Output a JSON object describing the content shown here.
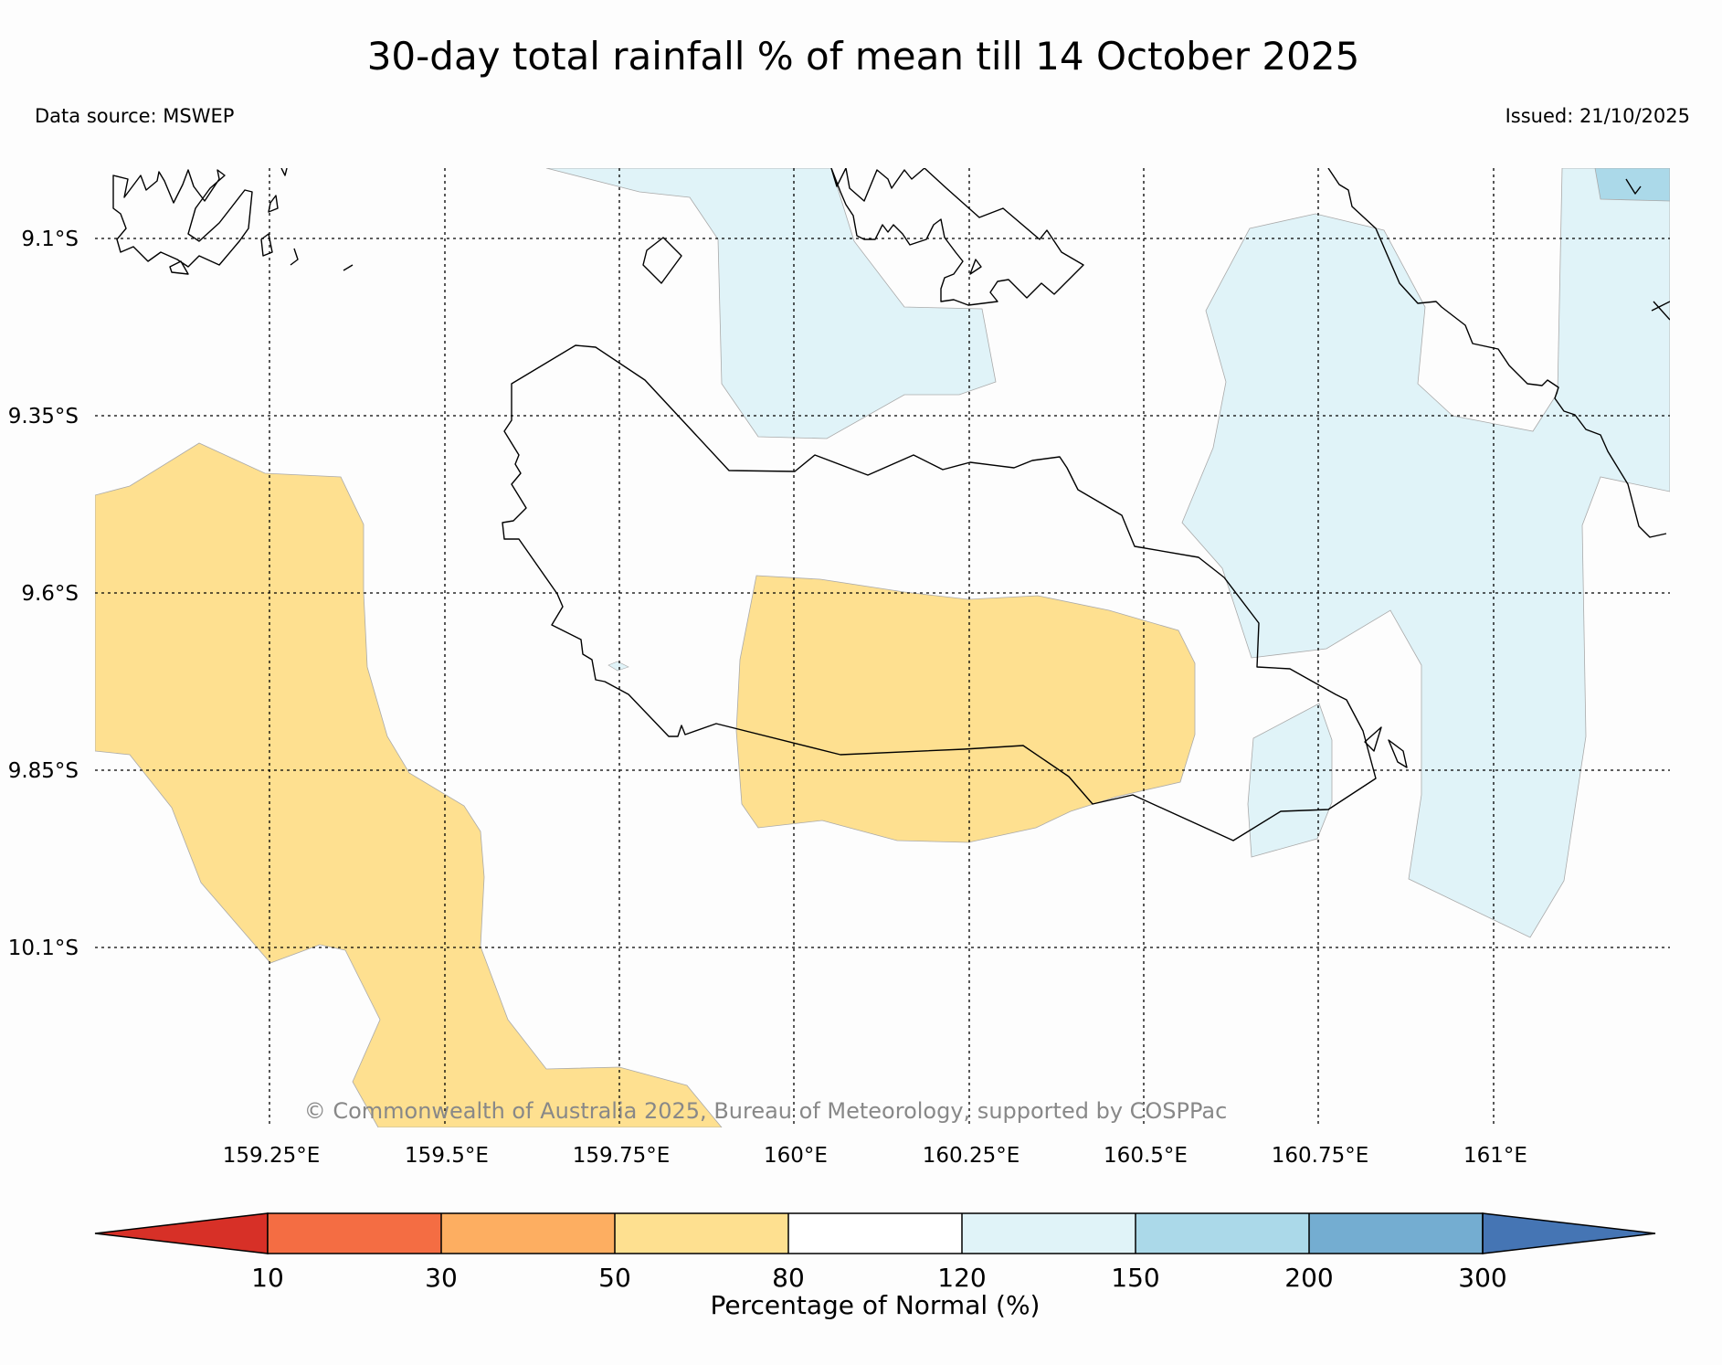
{
  "header": {
    "title": "30-day total rainfall % of mean till 14 October 2025",
    "data_source": "Data source: MSWEP",
    "issued": "Issued: 21/10/2025"
  },
  "map": {
    "lat_labels": [
      "9.1°S",
      "9.35°S",
      "9.6°S",
      "9.85°S",
      "10.1°S"
    ],
    "lon_labels": [
      "159.25°E",
      "159.5°E",
      "159.75°E",
      "160°E",
      "160.25°E",
      "160.5°E",
      "160.75°E",
      "161°E"
    ],
    "credit": "© Commonwealth of Australia 2025, Bureau of Meteorology, supported by COSPPac"
  },
  "colorbar": {
    "label": "Percentage of Normal (%)",
    "ticks": [
      "10",
      "30",
      "50",
      "80",
      "120",
      "150",
      "200",
      "300"
    ],
    "colors": [
      "#d73027",
      "#f46d43",
      "#fdae61",
      "#fee090",
      "#ffffff",
      "#e0f3f8",
      "#abd9e9",
      "#74add1",
      "#4575b4"
    ]
  }
}
